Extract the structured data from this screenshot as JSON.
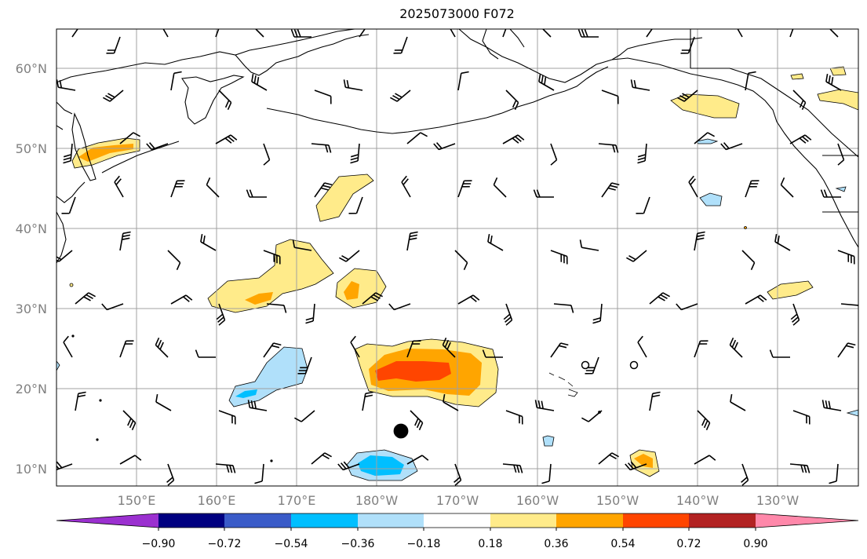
{
  "title": "2025073000 F072",
  "lat_labels": [
    "60°N",
    "50°N",
    "40°N",
    "30°N",
    "20°N",
    "10°N"
  ],
  "lon_labels": [
    "150°E",
    "160°E",
    "170°E",
    "180°W",
    "170°W",
    "160°W",
    "150°W",
    "140°W",
    "130°W"
  ],
  "colorbar": {
    "levels": [
      "−0.90",
      "−0.72",
      "−0.54",
      "−0.36",
      "−0.18",
      "0.18",
      "0.36",
      "0.54",
      "0.72",
      "0.90"
    ],
    "colors": [
      "#9b30d0",
      "#000080",
      "#3a5bc8",
      "#00bfff",
      "#b0e0fa",
      "#ffffff",
      "#ffeb8a",
      "#ffa500",
      "#ff4500",
      "#b22222",
      "#ff88aa"
    ]
  },
  "colors": {
    "grid": "#a0a0a0",
    "coast": "#000000",
    "tick_text": "#808080"
  },
  "markers": {
    "storm_center": "filled-dot",
    "hawaii_points": "open-circles"
  }
}
